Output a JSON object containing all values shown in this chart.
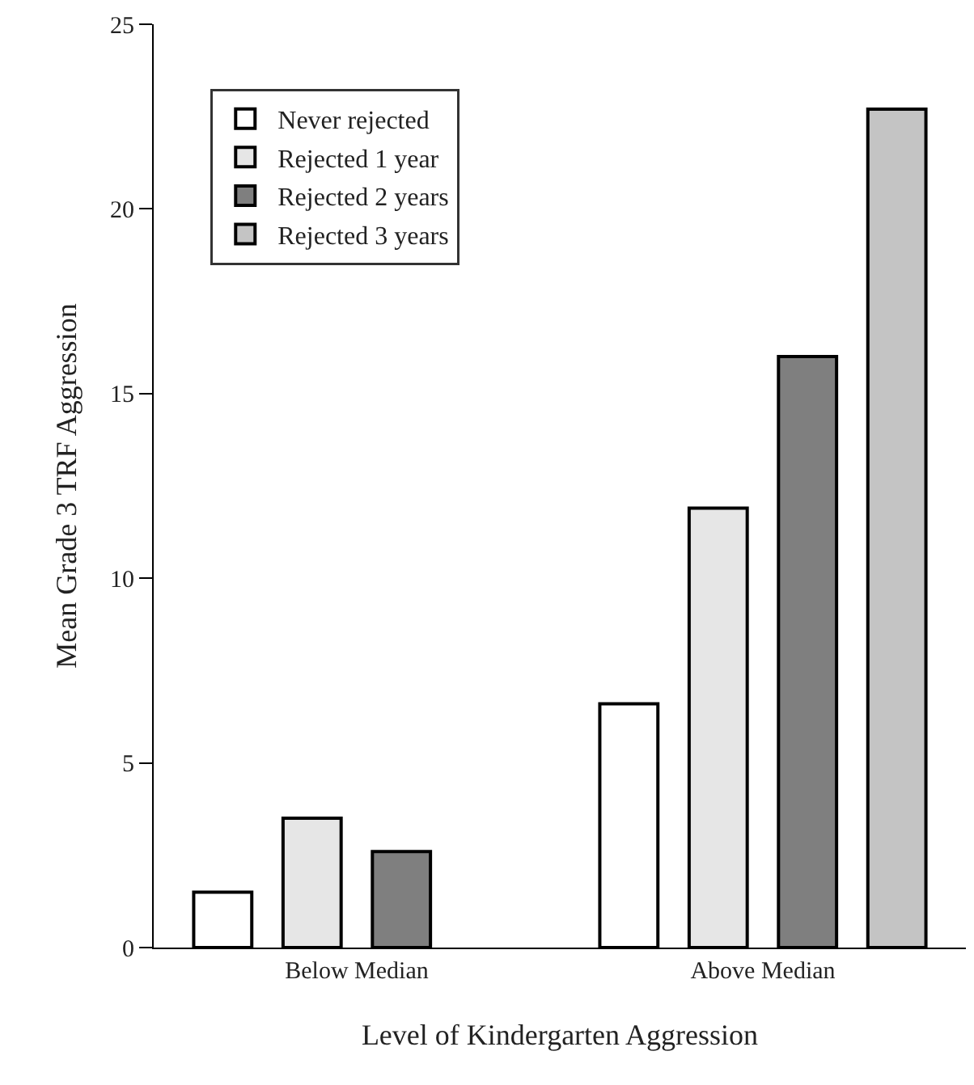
{
  "chart_data": {
    "type": "bar",
    "xlabel": "Level of Kindergarten Aggression",
    "ylabel": "Mean Grade 3 TRF Aggression",
    "categories": [
      "Below Median",
      "Above Median"
    ],
    "series": [
      {
        "name": "Never rejected",
        "color": "#ffffff",
        "values": [
          1.5,
          6.6
        ]
      },
      {
        "name": "Rejected 1 year",
        "color": "#e6e6e6",
        "values": [
          3.5,
          11.9
        ]
      },
      {
        "name": "Rejected 2 years",
        "color": "#7f7f7f",
        "values": [
          2.6,
          16.0
        ]
      },
      {
        "name": "Rejected 3 years",
        "color": "#c4c4c4",
        "values": [
          null,
          22.7
        ]
      }
    ],
    "ylim": [
      0,
      25
    ],
    "yticks": [
      0,
      5,
      10,
      15,
      20,
      25
    ],
    "legend": "top left"
  }
}
